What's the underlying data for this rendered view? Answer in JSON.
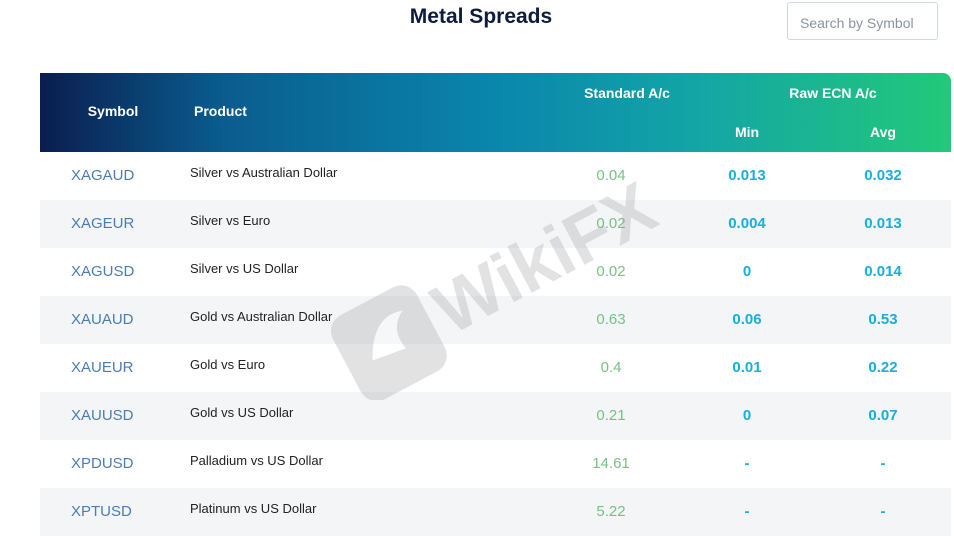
{
  "header": {
    "title": "Metal Spreads",
    "search_placeholder": "Search by Symbol"
  },
  "table": {
    "columns": {
      "symbol": "Symbol",
      "product": "Product",
      "standard": "Standard A/c",
      "raw": "Raw ECN A/c",
      "min": "Min",
      "avg": "Avg"
    },
    "rows": [
      [
        "XAGAUD",
        "Silver vs Australian Dollar",
        "0.04",
        "0.013",
        "0.032"
      ],
      [
        "XAGEUR",
        "Silver vs Euro",
        "0.02",
        "0.004",
        "0.013"
      ],
      [
        "XAGUSD",
        "Silver vs US Dollar",
        "0.02",
        "0",
        "0.014"
      ],
      [
        "XAUAUD",
        "Gold vs Australian Dollar",
        "0.63",
        "0.06",
        "0.53"
      ],
      [
        "XAUEUR",
        "Gold vs Euro",
        "0.4",
        "0.01",
        "0.22"
      ],
      [
        "XAUUSD",
        "Gold vs US Dollar",
        "0.21",
        "0",
        "0.07"
      ],
      [
        "XPDUSD",
        "Palladium vs US Dollar",
        "14.61",
        "-",
        "-"
      ],
      [
        "XPTUSD",
        "Platinum vs US Dollar",
        "5.22",
        "-",
        "-"
      ]
    ]
  },
  "watermark": "WikiFX"
}
